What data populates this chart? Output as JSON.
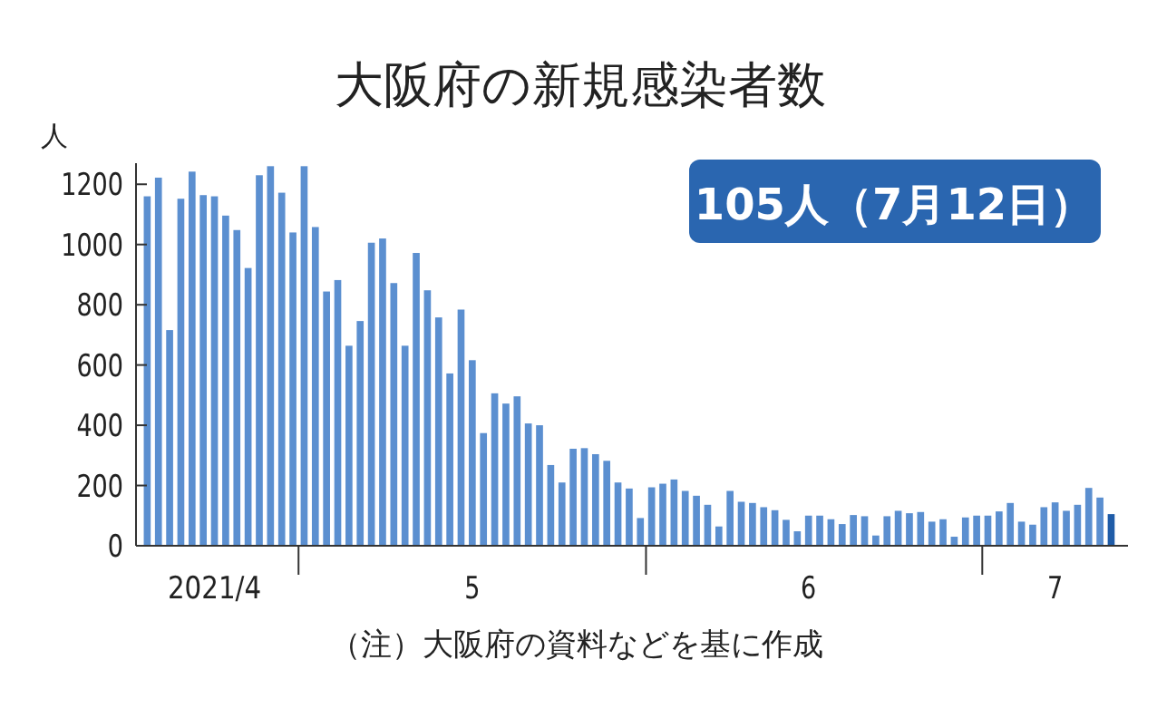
{
  "chart_data": {
    "type": "bar",
    "title": "大阪府の新規感染者数",
    "ylabel": "人",
    "annotations": [
      "105人（7月12日）",
      "（注）大阪府の資料などを基に作成"
    ],
    "x": [
      "2021-04-17",
      "2021-04-18",
      "2021-04-19",
      "2021-04-20",
      "2021-04-21",
      "2021-04-22",
      "2021-04-23",
      "2021-04-24",
      "2021-04-25",
      "2021-04-26",
      "2021-04-27",
      "2021-04-28",
      "2021-04-29",
      "2021-04-30",
      "2021-05-01",
      "2021-05-02",
      "2021-05-03",
      "2021-05-04",
      "2021-05-05",
      "2021-05-06",
      "2021-05-07",
      "2021-05-08",
      "2021-05-09",
      "2021-05-10",
      "2021-05-11",
      "2021-05-12",
      "2021-05-13",
      "2021-05-14",
      "2021-05-15",
      "2021-05-16",
      "2021-05-17",
      "2021-05-18",
      "2021-05-19",
      "2021-05-20",
      "2021-05-21",
      "2021-05-22",
      "2021-05-23",
      "2021-05-24",
      "2021-05-25",
      "2021-05-26",
      "2021-05-27",
      "2021-05-28",
      "2021-05-29",
      "2021-05-30",
      "2021-05-31",
      "2021-06-01",
      "2021-06-02",
      "2021-06-03",
      "2021-06-04",
      "2021-06-05",
      "2021-06-06",
      "2021-06-07",
      "2021-06-08",
      "2021-06-09",
      "2021-06-10",
      "2021-06-11",
      "2021-06-12",
      "2021-06-13",
      "2021-06-14",
      "2021-06-15",
      "2021-06-16",
      "2021-06-17",
      "2021-06-18",
      "2021-06-19",
      "2021-06-20",
      "2021-06-21",
      "2021-06-22",
      "2021-06-23",
      "2021-06-24",
      "2021-06-25",
      "2021-06-26",
      "2021-06-27",
      "2021-06-28",
      "2021-06-29",
      "2021-06-30",
      "2021-07-01",
      "2021-07-02",
      "2021-07-03",
      "2021-07-04",
      "2021-07-05",
      "2021-07-06",
      "2021-07-07",
      "2021-07-08",
      "2021-07-09",
      "2021-07-10",
      "2021-07-11",
      "2021-07-12"
    ],
    "values": [
      1160,
      1222,
      716,
      1152,
      1242,
      1164,
      1160,
      1096,
      1048,
      922,
      1230,
      1260,
      1172,
      1040,
      1260,
      1058,
      844,
      882,
      664,
      746,
      1006,
      1020,
      872,
      664,
      972,
      848,
      758,
      572,
      784,
      616,
      374,
      506,
      472,
      496,
      406,
      400,
      268,
      210,
      322,
      324,
      304,
      282,
      210,
      190,
      92,
      194,
      206,
      220,
      182,
      166,
      136,
      64,
      182,
      146,
      142,
      128,
      118,
      86,
      48,
      100,
      100,
      88,
      72,
      102,
      98,
      34,
      98,
      116,
      108,
      112,
      80,
      88,
      30,
      94,
      100,
      100,
      114,
      142,
      80,
      70,
      128,
      144,
      116,
      136,
      192,
      160,
      105
    ],
    "colors": [
      "#5b8fd0",
      "#5b8fd0",
      "#5b8fd0",
      "#5b8fd0",
      "#5b8fd0",
      "#5b8fd0",
      "#5b8fd0",
      "#5b8fd0",
      "#5b8fd0",
      "#5b8fd0",
      "#5b8fd0",
      "#5b8fd0",
      "#5b8fd0",
      "#5b8fd0",
      "#5b8fd0",
      "#5b8fd0",
      "#5b8fd0",
      "#5b8fd0",
      "#5b8fd0",
      "#5b8fd0",
      "#5b8fd0",
      "#5b8fd0",
      "#5b8fd0",
      "#5b8fd0",
      "#5b8fd0",
      "#5b8fd0",
      "#5b8fd0",
      "#5b8fd0",
      "#5b8fd0",
      "#5b8fd0",
      "#5b8fd0",
      "#5b8fd0",
      "#5b8fd0",
      "#5b8fd0",
      "#5b8fd0",
      "#5b8fd0",
      "#5b8fd0",
      "#5b8fd0",
      "#5b8fd0",
      "#5b8fd0",
      "#5b8fd0",
      "#5b8fd0",
      "#5b8fd0",
      "#5b8fd0",
      "#5b8fd0",
      "#5b8fd0",
      "#5b8fd0",
      "#5b8fd0",
      "#5b8fd0",
      "#5b8fd0",
      "#5b8fd0",
      "#5b8fd0",
      "#5b8fd0",
      "#5b8fd0",
      "#5b8fd0",
      "#5b8fd0",
      "#5b8fd0",
      "#5b8fd0",
      "#5b8fd0",
      "#5b8fd0",
      "#5b8fd0",
      "#5b8fd0",
      "#5b8fd0",
      "#5b8fd0",
      "#5b8fd0",
      "#5b8fd0",
      "#5b8fd0",
      "#5b8fd0",
      "#5b8fd0",
      "#5b8fd0",
      "#5b8fd0",
      "#5b8fd0",
      "#5b8fd0",
      "#5b8fd0",
      "#5b8fd0",
      "#5b8fd0",
      "#5b8fd0",
      "#5b8fd0",
      "#5b8fd0",
      "#5b8fd0",
      "#5b8fd0",
      "#5b8fd0",
      "#5b8fd0",
      "#5b8fd0",
      "#5b8fd0",
      "#5b8fd0",
      "#1f5ca8"
    ],
    "xlim": [
      "2021-04-16",
      "2021-07-13T12:00"
    ],
    "xticks": [
      {
        "value": "2021-04-23",
        "label": "2021/4"
      },
      {
        "value": "2021-04-30T12:00",
        "label": null
      },
      {
        "value": "2021-05-16",
        "label": "5"
      },
      {
        "value": "2021-05-31T12:00",
        "label": null
      },
      {
        "value": "2021-06-15",
        "label": "6"
      },
      {
        "value": "2021-06-30T12:00",
        "label": null
      },
      {
        "value": "2021-07-07",
        "label": "7"
      }
    ],
    "ylim": [
      0,
      1270
    ],
    "yticks": [
      0,
      200,
      400,
      600,
      800,
      1000,
      1200
    ],
    "grid": false
  }
}
